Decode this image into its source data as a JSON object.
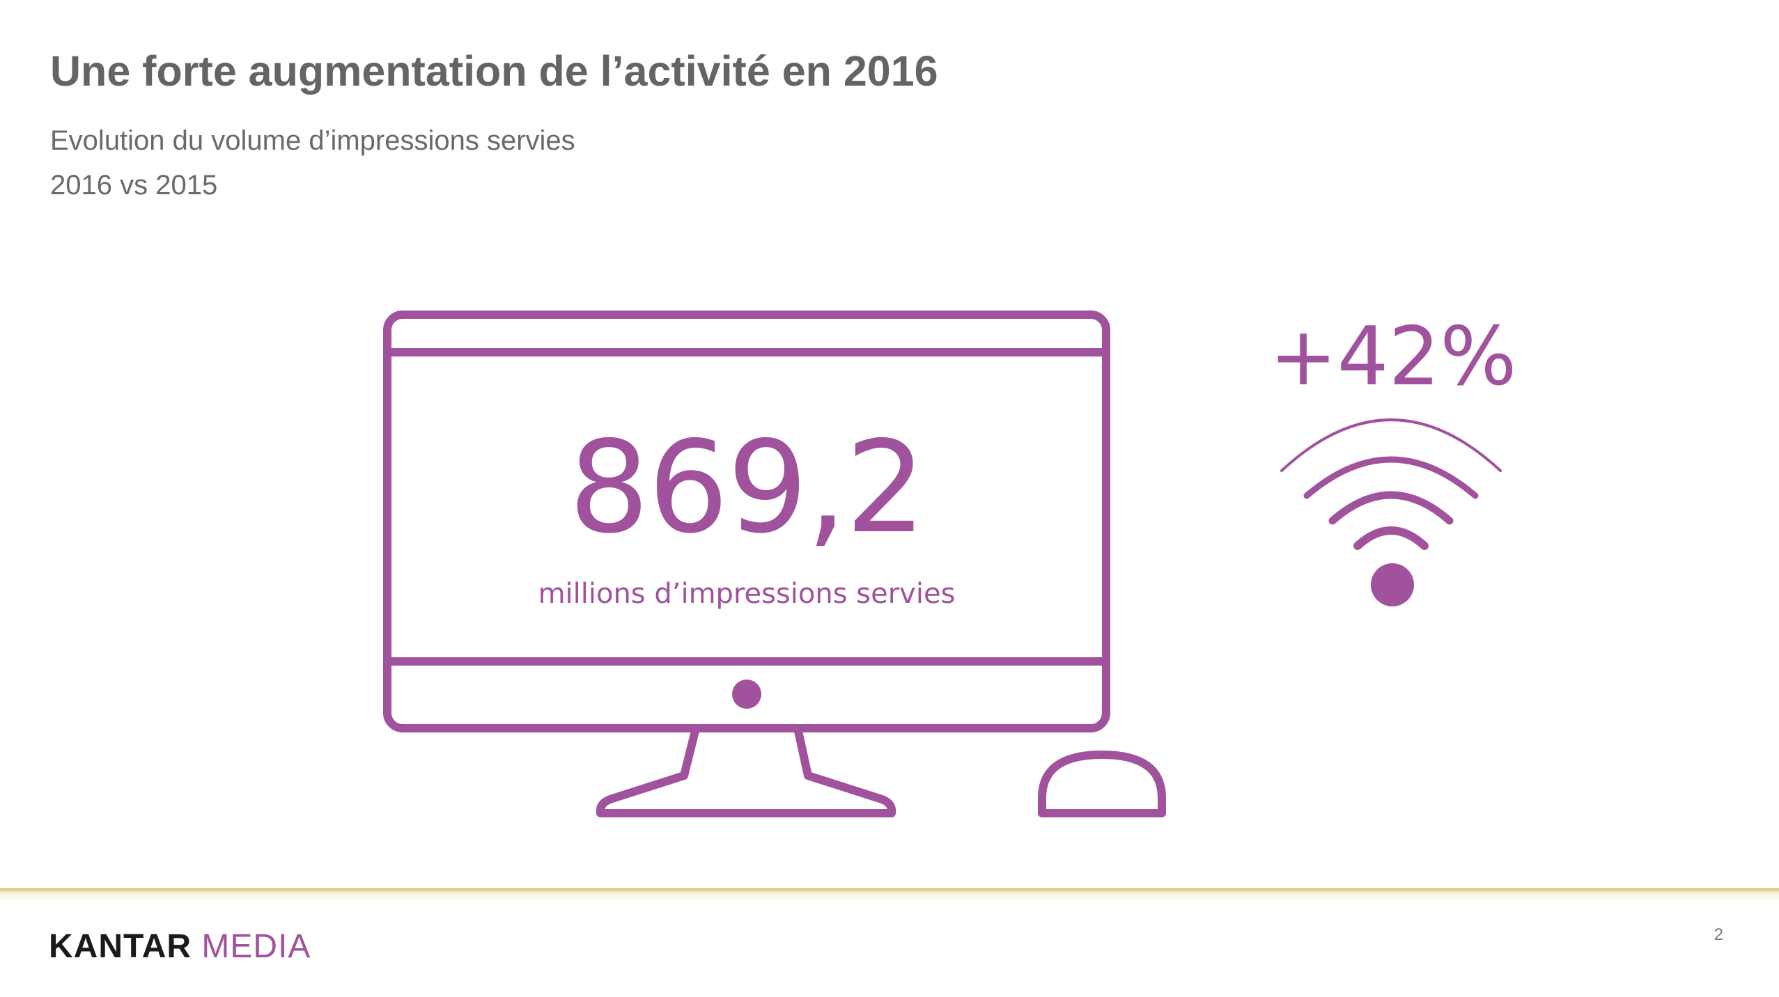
{
  "slide": {
    "title": "Une forte augmentation de l’activité en 2016",
    "subtitle_line_1": "Evolution du volume d’impressions servies",
    "subtitle_line_2": "2016 vs 2015"
  },
  "key_figure": {
    "value": "869,2",
    "caption": "millions d’impressions servies",
    "icon": "desktop-computer-icon"
  },
  "growth": {
    "value": "+42%",
    "icon": "wifi-signal-icon"
  },
  "footer": {
    "brand_primary": "KANTAR",
    "brand_secondary": "MEDIA",
    "page_number": "2"
  },
  "colors": {
    "accent": "#a0529c",
    "title": "#646464",
    "rule": "#c9ad55"
  }
}
